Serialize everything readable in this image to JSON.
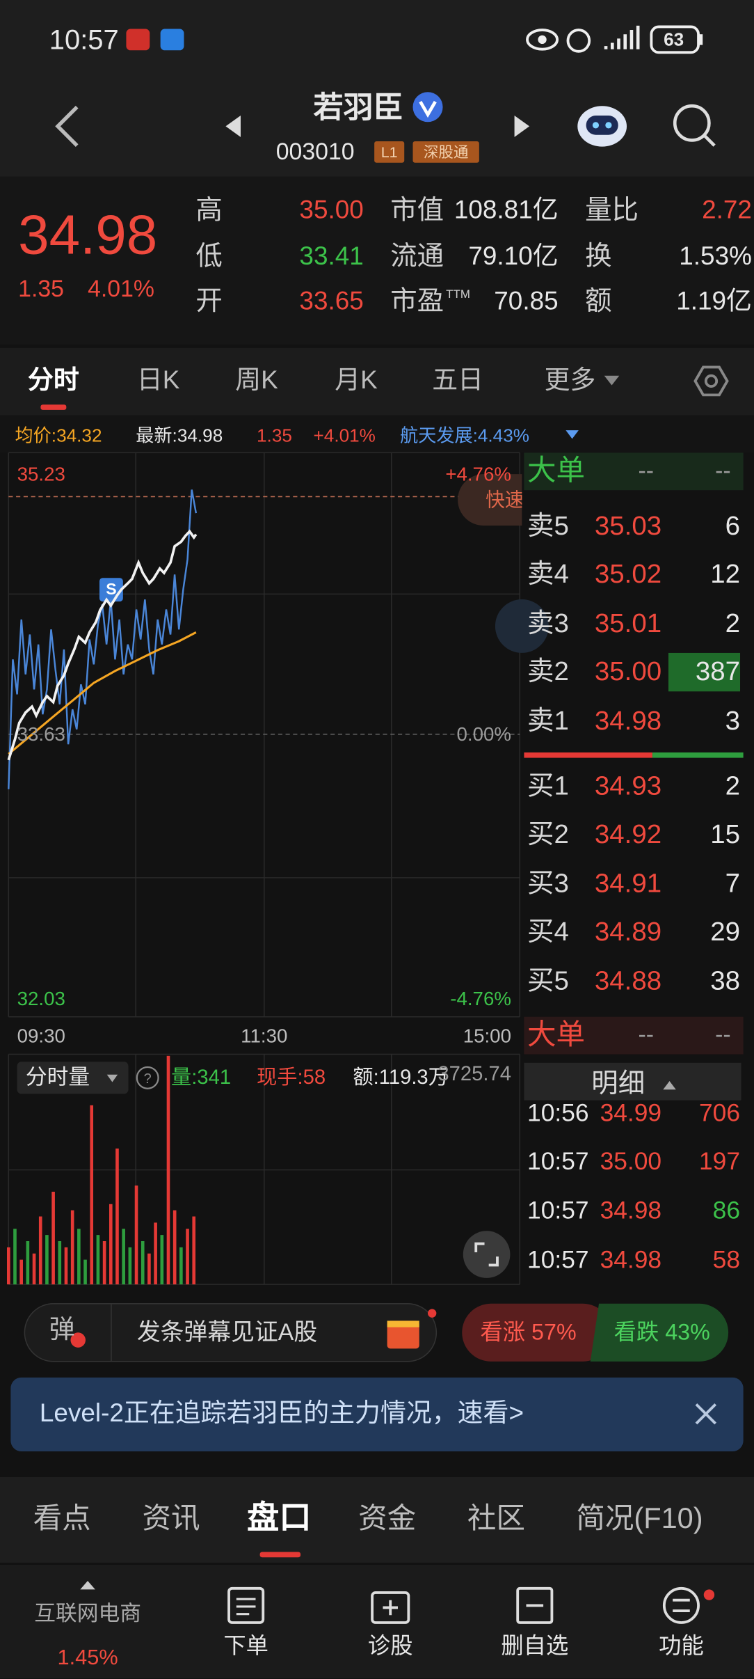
{
  "status_bar": {
    "time": "10:57",
    "battery": "63"
  },
  "header": {
    "title": "若羽臣",
    "code": "003010",
    "badges": [
      "L1",
      "深股通"
    ]
  },
  "quote": {
    "price": "34.98",
    "change": "1.35",
    "change_pct": "4.01%",
    "stats": [
      [
        {
          "label": "高",
          "value": "35.00",
          "color": "#f04a3e"
        },
        {
          "label": "市值",
          "value": "108.81亿",
          "color": "#e8e8e8"
        },
        {
          "label": "量比",
          "value": "2.72",
          "color": "#f04a3e"
        }
      ],
      [
        {
          "label": "低",
          "value": "33.41",
          "color": "#3cc24a"
        },
        {
          "label": "流通",
          "value": "79.10亿",
          "color": "#e8e8e8"
        },
        {
          "label": "换",
          "value": "1.53%",
          "color": "#e8e8e8"
        }
      ],
      [
        {
          "label": "开",
          "value": "33.65",
          "color": "#f04a3e"
        },
        {
          "label": "市盈",
          "label_sup": "TTM",
          "value": "70.85",
          "color": "#e8e8e8"
        },
        {
          "label": "额",
          "value": "1.19亿",
          "color": "#e8e8e8"
        }
      ]
    ]
  },
  "tabs": {
    "items": [
      "分时",
      "日K",
      "周K",
      "月K",
      "五日",
      "更多"
    ],
    "active": 0
  },
  "intraday": {
    "info": {
      "avg": "均价:34.32",
      "latest": "最新:34.98",
      "change": "1.35",
      "change_pct": "+4.01%",
      "related": "航天发展:4.43%"
    },
    "left_labels": [
      "35.23",
      "33.63",
      "32.03"
    ],
    "right_labels": [
      "+4.76%",
      "0.00%",
      "-4.76%"
    ],
    "time_labels": [
      "09:30",
      "11:30",
      "15:00"
    ],
    "marker": "S",
    "quick_button": "快速",
    "xlim": [
      0,
      240
    ],
    "ylim": [
      31.73,
      35.53
    ],
    "y2lim": [
      -5.66,
      5.64
    ],
    "price_line": {
      "color": "#f2f2f2",
      "x": [
        0,
        3,
        5,
        8,
        11,
        13,
        16,
        18,
        21,
        23,
        26,
        28,
        31,
        33,
        36,
        38,
        41,
        43,
        46,
        48,
        51,
        53,
        56,
        58,
        61,
        63,
        66,
        68,
        71,
        73,
        76,
        78,
        81,
        83,
        85,
        87,
        88
      ],
      "values": [
        33.46,
        33.6,
        33.71,
        33.78,
        33.82,
        33.76,
        33.85,
        33.89,
        33.85,
        33.96,
        34.03,
        34.11,
        34.21,
        34.29,
        34.25,
        34.32,
        34.39,
        34.47,
        34.54,
        34.5,
        34.57,
        34.61,
        34.65,
        34.68,
        34.79,
        34.72,
        34.65,
        34.68,
        34.75,
        34.72,
        34.79,
        34.9,
        34.93,
        34.97,
        35.0,
        34.96,
        34.98
      ]
    },
    "avg_line": {
      "color": "#f5a623",
      "x": [
        0,
        10,
        20,
        30,
        40,
        50,
        60,
        70,
        80,
        88
      ],
      "values": [
        33.5,
        33.62,
        33.74,
        33.86,
        33.98,
        34.06,
        34.13,
        34.2,
        34.26,
        34.32
      ]
    },
    "related_line": {
      "color": "#4a86d8",
      "axis": "y2",
      "x": [
        0,
        2,
        4,
        6,
        8,
        10,
        12,
        14,
        16,
        18,
        20,
        22,
        24,
        26,
        28,
        30,
        32,
        34,
        36,
        38,
        40,
        42,
        44,
        46,
        48,
        50,
        52,
        54,
        56,
        58,
        60,
        62,
        64,
        66,
        68,
        70,
        72,
        74,
        76,
        78,
        80,
        82,
        84,
        86,
        88
      ],
      "values": [
        -1.1,
        1.5,
        0.8,
        2.3,
        1.2,
        2.0,
        0.9,
        1.8,
        0.4,
        0.9,
        2.1,
        1.3,
        0.6,
        1.7,
        -0.2,
        0.5,
        0.1,
        1.0,
        0.6,
        1.9,
        1.4,
        2.2,
        2.6,
        1.8,
        2.7,
        1.5,
        2.3,
        1.2,
        1.8,
        1.5,
        2.5,
        1.9,
        2.7,
        1.7,
        1.2,
        2.3,
        1.8,
        2.5,
        2.0,
        3.2,
        2.1,
        2.9,
        3.5,
        4.9,
        4.43
      ]
    },
    "volume": {
      "header": {
        "label": "分时量",
        "volume": "量:341",
        "hand": "现手:58",
        "amount": "额:119.3万",
        "max_label": "3725.74"
      },
      "ylim": [
        0,
        3725.74
      ],
      "x": [
        0,
        3,
        6,
        9,
        12,
        15,
        18,
        21,
        24,
        27,
        30,
        33,
        36,
        39,
        42,
        45,
        48,
        51,
        54,
        57,
        60,
        63,
        66,
        69,
        72,
        75,
        78,
        81,
        84,
        87
      ],
      "values": [
        600,
        900,
        400,
        700,
        500,
        1100,
        800,
        1500,
        700,
        600,
        1200,
        900,
        400,
        2900,
        800,
        700,
        1300,
        2200,
        900,
        600,
        1600,
        700,
        500,
        1000,
        800,
        3700,
        1200,
        600,
        900,
        1100
      ],
      "colors": [
        "#e53935",
        "#2e9e3e",
        "#e53935",
        "#2e9e3e",
        "#e53935",
        "#e53935",
        "#2e9e3e",
        "#e53935",
        "#2e9e3e",
        "#e53935",
        "#e53935",
        "#2e9e3e",
        "#2e9e3e",
        "#e53935",
        "#2e9e3e",
        "#e53935",
        "#e53935",
        "#e53935",
        "#2e9e3e",
        "#2e9e3e",
        "#e53935",
        "#2e9e3e",
        "#e53935",
        "#e53935",
        "#2e9e3e",
        "#e53935",
        "#e53935",
        "#2e9e3e",
        "#e53935",
        "#e53935"
      ]
    }
  },
  "order_book": {
    "title": "大单",
    "dashes": [
      "--",
      "--"
    ],
    "asks": [
      {
        "label": "卖5",
        "price": "35.03",
        "volume": "6"
      },
      {
        "label": "卖4",
        "price": "35.02",
        "volume": "12"
      },
      {
        "label": "卖3",
        "price": "35.01",
        "volume": "2"
      },
      {
        "label": "卖2",
        "price": "35.00",
        "volume": "387"
      },
      {
        "label": "卖1",
        "price": "34.98",
        "volume": "3"
      }
    ],
    "bids": [
      {
        "label": "买1",
        "price": "34.93",
        "volume": "2"
      },
      {
        "label": "买2",
        "price": "34.92",
        "volume": "15"
      },
      {
        "label": "买3",
        "price": "34.91",
        "volume": "7"
      },
      {
        "label": "买4",
        "price": "34.89",
        "volume": "29"
      },
      {
        "label": "买5",
        "price": "34.88",
        "volume": "38"
      }
    ]
  },
  "big_order": {
    "title": "大单",
    "dashes": [
      "--",
      "--"
    ]
  },
  "ticks": {
    "title": "明细",
    "rows": [
      {
        "time": "10:56",
        "price": "34.99",
        "volume": "706",
        "volume_color": "#f04a3e"
      },
      {
        "time": "10:57",
        "price": "35.00",
        "volume": "197",
        "volume_color": "#f04a3e"
      },
      {
        "time": "10:57",
        "price": "34.98",
        "volume": "86",
        "volume_color": "#3cc24a"
      },
      {
        "time": "10:57",
        "price": "34.98",
        "volume": "58",
        "volume_color": "#f04a3e"
      }
    ]
  },
  "danmaku": {
    "icon": "弹",
    "placeholder": "发条弹幕见证A股",
    "bull": "看涨 57%",
    "bear": "看跌 43%"
  },
  "banner": {
    "text": "Level-2正在追踪若羽臣的主力情况，速看>"
  },
  "bottom_tabs": {
    "items": [
      "看点",
      "资讯",
      "盘口",
      "资金",
      "社区",
      "简况(F10)"
    ],
    "active": 2
  },
  "nav": {
    "sector": "互联网电商",
    "sector_change": "1.45%",
    "items": [
      "下单",
      "诊股",
      "删自选",
      "功能"
    ]
  }
}
